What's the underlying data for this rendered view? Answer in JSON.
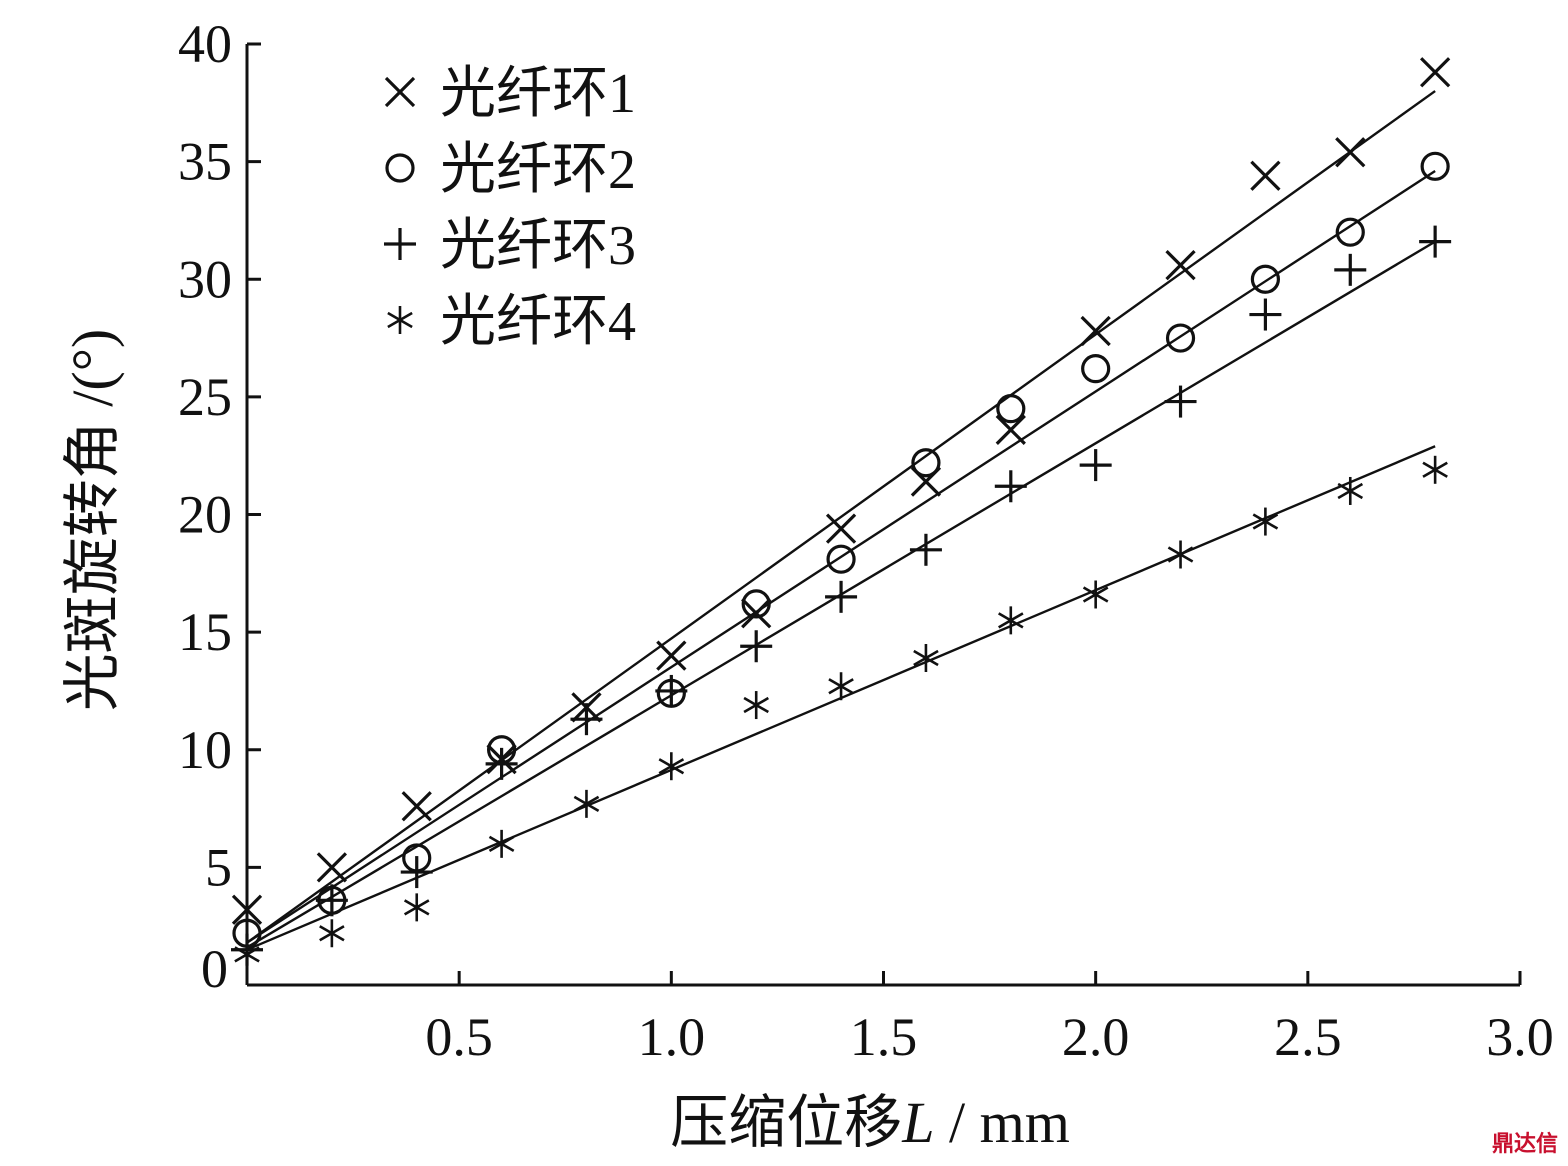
{
  "chart_data": {
    "type": "scatter",
    "xlabel_prefix": "压缩位移",
    "xlabel_var": "L",
    "xlabel_unit": " / mm",
    "ylabel": "光斑旋转角 /(°)",
    "xlim": [
      0,
      3.0
    ],
    "ylim": [
      0,
      40
    ],
    "x_ticks": [
      "0.5",
      "1.0",
      "1.5",
      "2.0",
      "2.5",
      "3.0"
    ],
    "x_tick_values": [
      0.5,
      1.0,
      1.5,
      2.0,
      2.5,
      3.0
    ],
    "y_ticks": [
      "0",
      "5",
      "10",
      "15",
      "20",
      "25",
      "30",
      "35",
      "40"
    ],
    "y_tick_values": [
      0,
      5,
      10,
      15,
      20,
      25,
      30,
      35,
      40
    ],
    "legend_position": "top-left",
    "grid": false,
    "series": [
      {
        "name": "光纤环1",
        "marker": "x",
        "x": [
          0.0,
          0.2,
          0.4,
          0.6,
          0.8,
          1.0,
          1.2,
          1.4,
          1.6,
          1.8,
          2.0,
          2.2,
          2.4,
          2.6,
          2.8
        ],
        "y": [
          3.2,
          5.0,
          7.6,
          9.6,
          11.8,
          14.0,
          15.8,
          19.4,
          21.4,
          23.6,
          27.8,
          30.6,
          34.4,
          35.4,
          38.8
        ],
        "fit": [
          [
            0.0,
            1.8
          ],
          [
            2.8,
            38.0
          ]
        ]
      },
      {
        "name": "光纤环2",
        "marker": "circle",
        "x": [
          0.0,
          0.2,
          0.4,
          0.6,
          1.0,
          1.2,
          1.4,
          1.6,
          1.8,
          2.0,
          2.2,
          2.4,
          2.6,
          2.8
        ],
        "y": [
          2.2,
          3.6,
          5.4,
          10.0,
          12.4,
          16.2,
          18.1,
          22.2,
          24.5,
          26.2,
          27.5,
          30.0,
          32.0,
          34.8
        ],
        "fit": [
          [
            0.0,
            1.8
          ],
          [
            2.8,
            34.6
          ]
        ]
      },
      {
        "name": "光纤环3",
        "marker": "plus",
        "x": [
          0.0,
          0.2,
          0.4,
          0.6,
          0.8,
          1.0,
          1.2,
          1.4,
          1.6,
          1.8,
          2.0,
          2.2,
          2.4,
          2.6,
          2.8
        ],
        "y": [
          1.5,
          3.6,
          4.8,
          9.4,
          11.3,
          12.5,
          14.4,
          16.5,
          18.5,
          21.2,
          22.1,
          24.8,
          28.5,
          30.4,
          31.6
        ],
        "fit": [
          [
            0.0,
            1.6
          ],
          [
            2.8,
            31.6
          ]
        ]
      },
      {
        "name": "光纤环4",
        "marker": "asterisk",
        "x": [
          0.0,
          0.2,
          0.4,
          0.6,
          0.8,
          1.0,
          1.2,
          1.4,
          1.6,
          1.8,
          2.0,
          2.2,
          2.4,
          2.6,
          2.8
        ],
        "y": [
          1.3,
          2.2,
          3.3,
          6.0,
          7.7,
          9.3,
          11.9,
          12.7,
          13.9,
          15.5,
          16.6,
          18.3,
          19.7,
          21.0,
          21.9
        ],
        "fit": [
          [
            0.0,
            1.5
          ],
          [
            2.8,
            22.9
          ]
        ]
      }
    ]
  },
  "watermark": "鼎达信"
}
